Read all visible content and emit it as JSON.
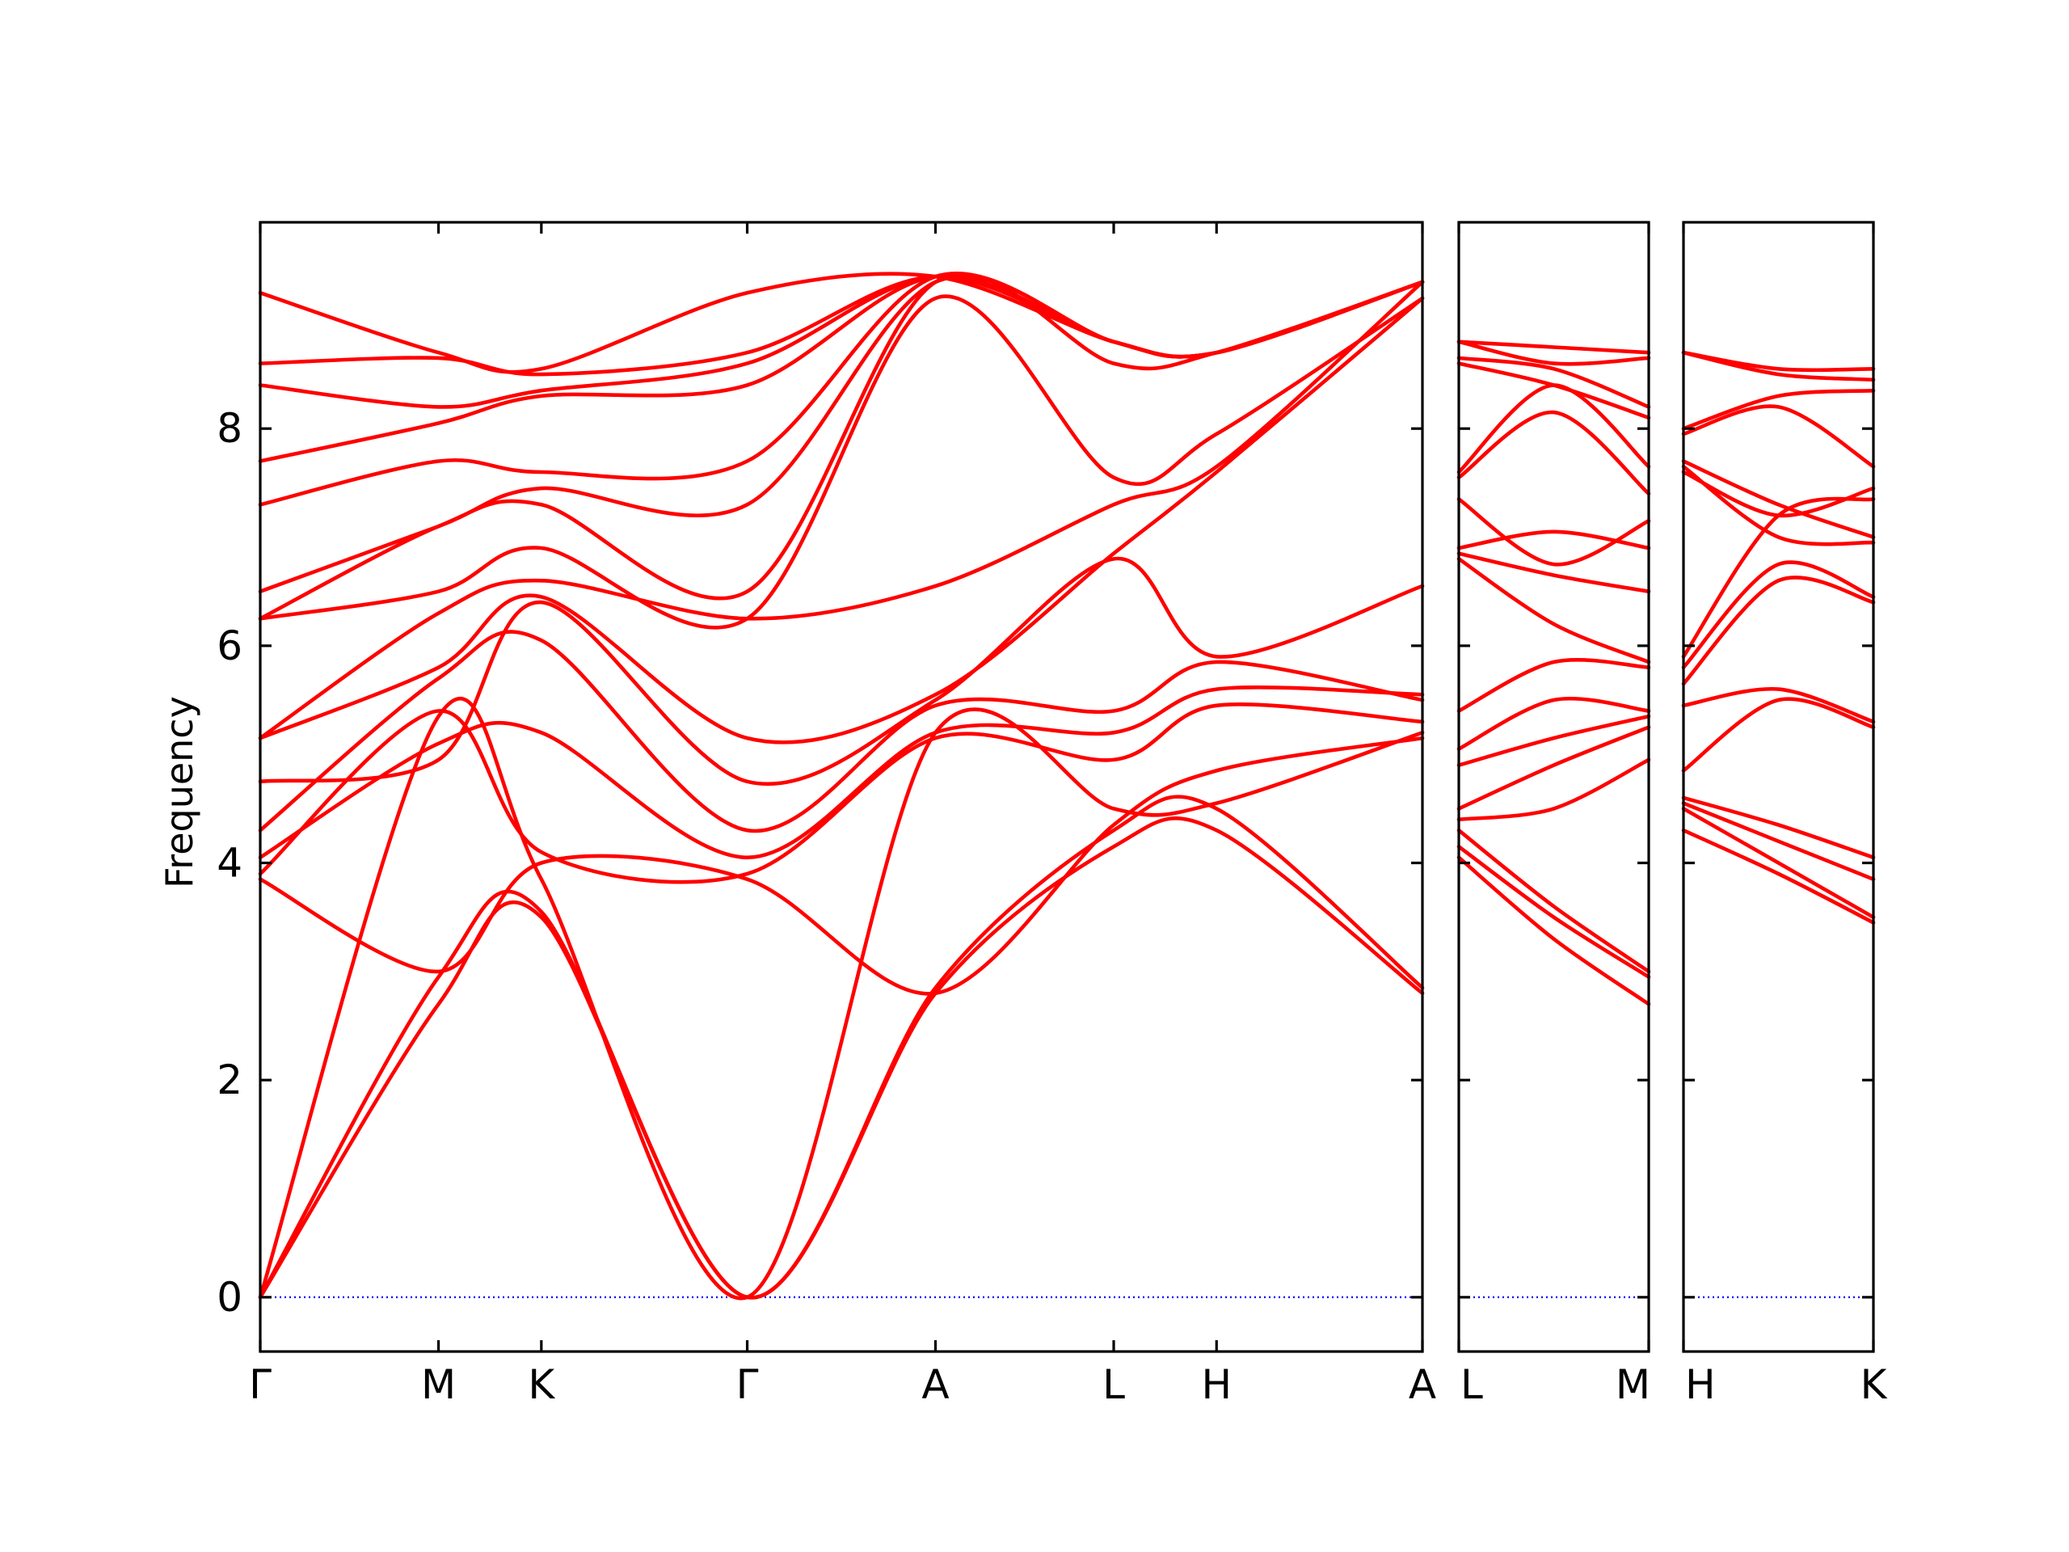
{
  "chart_data": {
    "type": "line",
    "ylabel": "Frequency",
    "ylim": [
      -0.5,
      9.9
    ],
    "y_ticks": [
      0,
      2,
      4,
      6,
      8
    ],
    "colors": {
      "bands": "#ff0000",
      "zero_line": "#0000ff",
      "frame": "#000000"
    },
    "panels": [
      {
        "x_ticks": [
          {
            "label": "Γ",
            "x": 0.0
          },
          {
            "label": "M",
            "x": 1.0
          },
          {
            "label": "K",
            "x": 1.577
          },
          {
            "label": "Γ",
            "x": 2.732
          },
          {
            "label": "A",
            "x": 3.788
          },
          {
            "label": "L",
            "x": 4.788
          },
          {
            "label": "H",
            "x": 5.365
          },
          {
            "label": "A",
            "x": 6.52
          }
        ],
        "series": [
          {
            "x": [
              0,
              1,
              1.577,
              2.732,
              3.788,
              4.788,
              5.365,
              6.52
            ],
            "y": [
              0,
              2.7,
              3.5,
              0,
              2.8,
              4.15,
              4.3,
              2.8
            ]
          },
          {
            "x": [
              0,
              1,
              1.577,
              2.732,
              3.788,
              4.788,
              5.365,
              6.52
            ],
            "y": [
              0,
              2.95,
              3.55,
              0,
              2.85,
              4.3,
              4.5,
              2.85
            ]
          },
          {
            "x": [
              0,
              1,
              1.577,
              2.732,
              3.788,
              4.788,
              5.365,
              6.52
            ],
            "y": [
              0,
              5.35,
              3.85,
              0,
              5.2,
              4.5,
              4.55,
              5.2
            ]
          },
          {
            "x": [
              0,
              1,
              1.577,
              2.732,
              3.788,
              4.788,
              5.365,
              6.52
            ],
            "y": [
              3.85,
              3.0,
              4.0,
              3.85,
              2.8,
              4.35,
              4.85,
              5.15
            ]
          },
          {
            "x": [
              0,
              1,
              1.577,
              2.732,
              3.788,
              4.788,
              5.365,
              6.52
            ],
            "y": [
              3.9,
              5.4,
              4.1,
              3.9,
              5.15,
              4.95,
              5.45,
              5.3
            ]
          },
          {
            "x": [
              0,
              1,
              1.577,
              2.732,
              3.788,
              4.788,
              5.365,
              6.52
            ],
            "y": [
              4.05,
              5.1,
              5.2,
              4.05,
              5.2,
              5.2,
              5.6,
              5.55
            ]
          },
          {
            "x": [
              0,
              1,
              1.577,
              2.732,
              3.788,
              4.788,
              5.365,
              6.52
            ],
            "y": [
              4.3,
              5.7,
              6.05,
              4.3,
              5.45,
              5.4,
              5.85,
              5.5
            ]
          },
          {
            "x": [
              0,
              1,
              1.577,
              2.732,
              3.788,
              4.788,
              5.365,
              6.52
            ],
            "y": [
              4.75,
              4.95,
              6.4,
              4.75,
              5.5,
              6.8,
              5.9,
              6.55
            ]
          },
          {
            "x": [
              0,
              1,
              1.577,
              2.732,
              3.788,
              4.788,
              5.365,
              6.52
            ],
            "y": [
              5.15,
              5.8,
              6.45,
              5.15,
              5.55,
              6.85,
              7.6,
              9.2
            ]
          },
          {
            "x": [
              0,
              1,
              1.577,
              2.732,
              3.788,
              4.788,
              5.365,
              6.52
            ],
            "y": [
              5.15,
              6.3,
              6.6,
              6.25,
              6.55,
              7.3,
              7.65,
              9.35
            ]
          },
          {
            "x": [
              0,
              1,
              1.577,
              2.732,
              3.788,
              4.788,
              5.365,
              6.52
            ],
            "y": [
              6.25,
              6.5,
              6.9,
              6.25,
              9.2,
              7.55,
              7.95,
              9.2
            ]
          },
          {
            "x": [
              0,
              1,
              1.577,
              2.732,
              3.788,
              4.788,
              5.365,
              6.52
            ],
            "y": [
              6.25,
              7.1,
              7.3,
              6.5,
              9.35,
              8.6,
              8.7,
              9.35
            ]
          },
          {
            "x": [
              0,
              1,
              1.577,
              2.732,
              3.788,
              4.788,
              5.365,
              6.52
            ],
            "y": [
              6.5,
              7.1,
              7.45,
              7.3,
              9.35,
              8.8,
              8.7,
              9.35
            ]
          },
          {
            "x": [
              0,
              1,
              1.577,
              2.732,
              3.788,
              4.788,
              5.365,
              6.52
            ],
            "y": [
              7.3,
              7.7,
              7.6,
              7.7,
              9.4,
              8.8,
              8.7,
              9.35
            ]
          },
          {
            "x": [
              0,
              1,
              1.577,
              2.732,
              3.788,
              4.788,
              5.365,
              6.52
            ],
            "y": [
              7.7,
              8.05,
              8.3,
              8.4,
              9.4,
              8.8,
              8.7,
              9.35
            ]
          },
          {
            "x": [
              0,
              1,
              1.577,
              2.732,
              3.788,
              4.788,
              5.365,
              6.52
            ],
            "y": [
              8.4,
              8.2,
              8.35,
              8.6,
              9.4,
              8.8,
              8.7,
              9.35
            ]
          },
          {
            "x": [
              0,
              1,
              1.577,
              2.732,
              3.788,
              4.788,
              5.365,
              6.52
            ],
            "y": [
              8.6,
              8.65,
              8.5,
              8.7,
              9.4,
              8.8,
              8.7,
              9.35
            ]
          },
          {
            "x": [
              0,
              1,
              1.577,
              2.732,
              3.788,
              4.788,
              5.365,
              6.52
            ],
            "y": [
              9.25,
              8.7,
              8.55,
              9.25,
              9.4,
              8.8,
              8.7,
              9.35
            ]
          }
        ]
      },
      {
        "x_ticks": [
          {
            "label": "L",
            "x": 0.0
          },
          {
            "label": "M",
            "x": 1.0
          }
        ],
        "series": [
          {
            "x": [
              0,
              0.5,
              1
            ],
            "y": [
              4.05,
              3.3,
              2.7
            ]
          },
          {
            "x": [
              0,
              0.5,
              1
            ],
            "y": [
              4.15,
              3.5,
              2.95
            ]
          },
          {
            "x": [
              0,
              0.5,
              1
            ],
            "y": [
              4.3,
              3.6,
              3.0
            ]
          },
          {
            "x": [
              0,
              0.5,
              1
            ],
            "y": [
              4.4,
              4.5,
              4.95
            ]
          },
          {
            "x": [
              0,
              0.5,
              1
            ],
            "y": [
              4.5,
              4.9,
              5.25
            ]
          },
          {
            "x": [
              0,
              0.5,
              1
            ],
            "y": [
              4.9,
              5.15,
              5.35
            ]
          },
          {
            "x": [
              0,
              0.5,
              1
            ],
            "y": [
              5.05,
              5.5,
              5.4
            ]
          },
          {
            "x": [
              0,
              0.5,
              1
            ],
            "y": [
              5.4,
              5.85,
              5.8
            ]
          },
          {
            "x": [
              0,
              0.5,
              1
            ],
            "y": [
              6.8,
              6.2,
              5.85
            ]
          },
          {
            "x": [
              0,
              0.5,
              1
            ],
            "y": [
              6.85,
              6.65,
              6.5
            ]
          },
          {
            "x": [
              0,
              0.5,
              1
            ],
            "y": [
              6.9,
              7.05,
              6.9
            ]
          },
          {
            "x": [
              0,
              0.5,
              1
            ],
            "y": [
              7.35,
              6.75,
              7.15
            ]
          },
          {
            "x": [
              0,
              0.5,
              1
            ],
            "y": [
              7.55,
              8.15,
              7.4
            ]
          },
          {
            "x": [
              0,
              0.5,
              1
            ],
            "y": [
              7.6,
              8.4,
              7.65
            ]
          },
          {
            "x": [
              0,
              0.5,
              1
            ],
            "y": [
              8.6,
              8.4,
              8.1
            ]
          },
          {
            "x": [
              0,
              0.5,
              1
            ],
            "y": [
              8.65,
              8.55,
              8.2
            ]
          },
          {
            "x": [
              0,
              0.5,
              1
            ],
            "y": [
              8.8,
              8.6,
              8.65
            ]
          },
          {
            "x": [
              0,
              0.5,
              1
            ],
            "y": [
              8.8,
              8.75,
              8.7
            ]
          }
        ]
      },
      {
        "x_ticks": [
          {
            "label": "H",
            "x": 0.0
          },
          {
            "label": "K",
            "x": 1.0
          }
        ],
        "series": [
          {
            "x": [
              0,
              0.5,
              1
            ],
            "y": [
              4.3,
              3.9,
              3.45
            ]
          },
          {
            "x": [
              0,
              0.5,
              1
            ],
            "y": [
              4.5,
              4.0,
              3.5
            ]
          },
          {
            "x": [
              0,
              0.5,
              1
            ],
            "y": [
              4.55,
              4.2,
              3.85
            ]
          },
          {
            "x": [
              0,
              0.5,
              1
            ],
            "y": [
              4.6,
              4.35,
              4.05
            ]
          },
          {
            "x": [
              0,
              0.5,
              1
            ],
            "y": [
              4.85,
              5.5,
              5.25
            ]
          },
          {
            "x": [
              0,
              0.5,
              1
            ],
            "y": [
              5.45,
              5.6,
              5.3
            ]
          },
          {
            "x": [
              0,
              0.5,
              1
            ],
            "y": [
              5.65,
              6.6,
              6.4
            ]
          },
          {
            "x": [
              0,
              0.5,
              1
            ],
            "y": [
              5.8,
              6.75,
              6.45
            ]
          },
          {
            "x": [
              0,
              0.5,
              1
            ],
            "y": [
              5.9,
              7.2,
              7.35
            ]
          },
          {
            "x": [
              0,
              0.5,
              1
            ],
            "y": [
              7.6,
              7.2,
              7.45
            ]
          },
          {
            "x": [
              0,
              0.5,
              1
            ],
            "y": [
              7.65,
              7.0,
              6.95
            ]
          },
          {
            "x": [
              0,
              0.5,
              1
            ],
            "y": [
              7.7,
              7.3,
              7.0
            ]
          },
          {
            "x": [
              0,
              0.5,
              1
            ],
            "y": [
              7.95,
              8.2,
              7.65
            ]
          },
          {
            "x": [
              0,
              0.5,
              1
            ],
            "y": [
              8.0,
              8.3,
              8.35
            ]
          },
          {
            "x": [
              0,
              0.5,
              1
            ],
            "y": [
              8.7,
              8.5,
              8.45
            ]
          },
          {
            "x": [
              0,
              0.5,
              1
            ],
            "y": [
              8.7,
              8.55,
              8.55
            ]
          }
        ]
      }
    ]
  }
}
